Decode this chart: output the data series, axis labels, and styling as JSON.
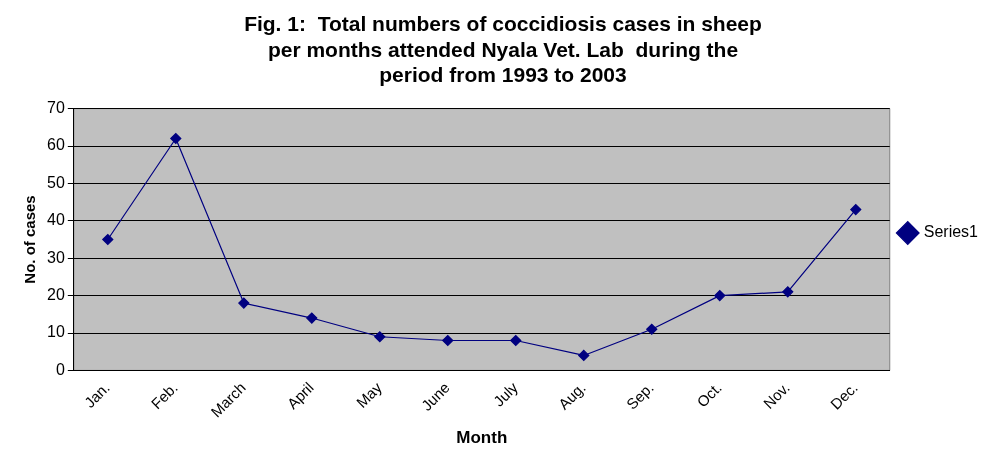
{
  "chart_data": {
    "type": "line",
    "title": "Fig. 1:  Total numbers of coccidiosis cases in sheep\nper months attended Nyala Vet. Lab  during the\nperiod from 1993 to 2003",
    "xlabel": "Month",
    "ylabel": "No. of cases",
    "categories": [
      "Jan.",
      "Feb.",
      "March",
      "April",
      "May",
      "June",
      "July",
      "Aug.",
      "Sep.",
      "Oct.",
      "Nov.",
      "Dec."
    ],
    "series": [
      {
        "name": "Series1",
        "color": "#000080",
        "values": [
          35,
          62,
          18,
          14,
          9,
          8,
          8,
          4,
          11,
          20,
          21,
          43
        ]
      }
    ],
    "ylim": [
      0,
      70
    ],
    "yticks": [
      0,
      10,
      20,
      30,
      40,
      50,
      60,
      70
    ],
    "grid": "y",
    "legend": "right",
    "marker": "diamond",
    "line_style": "solid"
  }
}
